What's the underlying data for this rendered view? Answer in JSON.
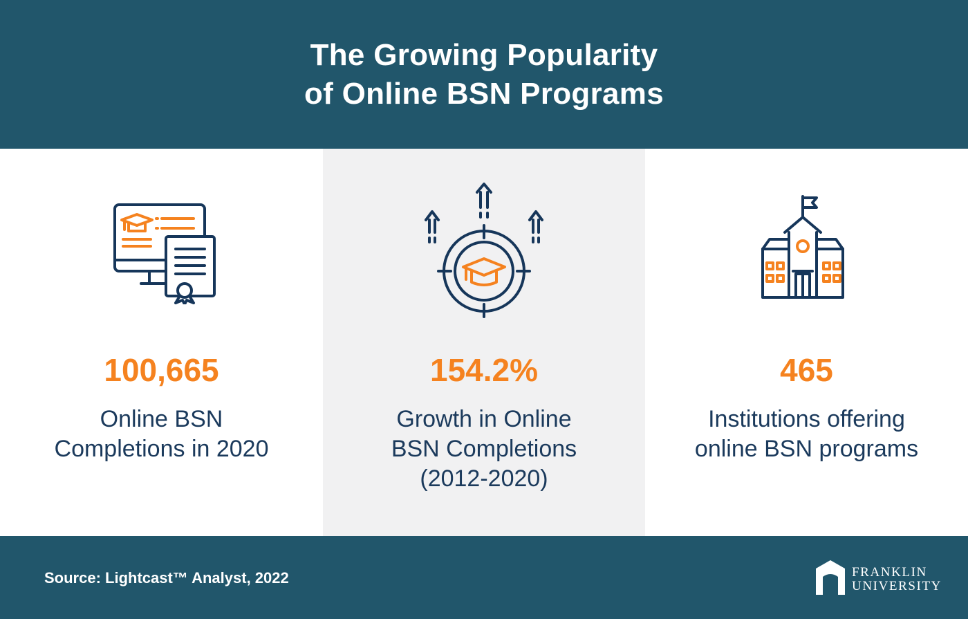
{
  "header": {
    "title_line1": "The Growing Popularity",
    "title_line2": "of Online BSN Programs"
  },
  "stats": [
    {
      "icon": "monitor-certificate-icon",
      "value": "100,665",
      "label_lines": [
        "Online BSN",
        "Completions in 2020"
      ]
    },
    {
      "icon": "target-graduation-cap-icon",
      "value": "154.2%",
      "label_lines": [
        "Growth in Online",
        "BSN Completions",
        "(2012-2020)"
      ]
    },
    {
      "icon": "school-building-icon",
      "value": "465",
      "label_lines": [
        "Institutions offering",
        "online BSN programs"
      ]
    }
  ],
  "footer": {
    "source": "Source: Lightcast™ Analyst, 2022",
    "logo_line1": "FRANKLIN",
    "logo_line2": "UNIVERSITY"
  },
  "colors": {
    "navy": "#21566b",
    "accent_orange": "#f5821f",
    "text_dark": "#1b3a5c",
    "icon_navy": "#16365a",
    "middle_panel_bg": "#f1f1f2"
  }
}
